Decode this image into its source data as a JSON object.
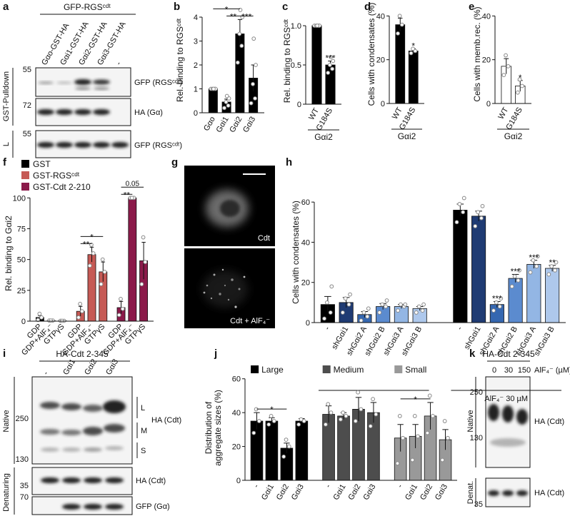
{
  "figure": {
    "panel_a": {
      "label": "a",
      "header": "GFP-RGSᶜᵈᵗ",
      "lanes": [
        "Gαo-GST-HA",
        "Gαi1-GST-HA",
        "Gαi2-GST-HA",
        "Gαi3-GST-HA",
        "-"
      ],
      "side_labels": [
        "GST-Pulldown",
        "L"
      ],
      "markers": [
        55,
        72,
        55
      ],
      "bands": [
        "GFP (RGSᶜᵈᵗ)",
        "HA (Gα)",
        "GFP (RGSᶜᵈᵗ)"
      ]
    },
    "panel_g": {
      "label": "g",
      "captions": [
        "Cdt",
        "Cdt + AlF₄⁻"
      ]
    },
    "panel_i": {
      "label": "i",
      "header": "HA-Cdt 2-345",
      "lanes": [
        "-",
        "Gαi1",
        "Gαi2",
        "Gαi3"
      ],
      "side_labels": [
        "Native",
        "Denaturing"
      ],
      "markers": [
        250,
        130,
        35,
        70
      ],
      "sizes": [
        "L",
        "M",
        "S"
      ],
      "bands": [
        "HA (Cdt)",
        "HA (Cdt)",
        "GFP (Gα)"
      ]
    },
    "panel_k": {
      "label": "k",
      "header": "HA-Cdt 2-345",
      "lanes": [
        0,
        30,
        150
      ],
      "unit": "AlF₄⁻ (µM)",
      "side_labels": [
        "Native",
        "Denat."
      ],
      "markers": [
        250,
        130,
        35
      ],
      "bands": [
        "HA (Cdt)",
        "HA (Cdt)"
      ]
    }
  },
  "chart_data": [
    {
      "panel": "b",
      "type": "bar",
      "ylabel": "Rel. binding to RGSᶜᵈᵗ",
      "categories": [
        "Gαo",
        "Gαi1",
        "Gαi2",
        "Gαi3"
      ],
      "values": [
        1.0,
        0.45,
        3.3,
        1.45
      ],
      "errors": [
        0.03,
        0.12,
        0.6,
        0.55
      ],
      "points": [
        [
          1,
          1,
          1,
          1,
          1
        ],
        [
          0.2,
          0.3,
          0.45,
          0.6,
          0.7
        ],
        [
          2.1,
          2.8,
          3.3,
          4.0,
          4.3
        ],
        [
          0.4,
          0.6,
          1.2,
          2.0,
          3.1
        ]
      ],
      "color": "#000000",
      "ylim": [
        0,
        4.4
      ],
      "yticks": [
        0,
        1,
        2,
        3,
        4
      ],
      "significance": [
        {
          "label": "*",
          "from": 0,
          "to": 2
        },
        {
          "label": "**",
          "from": 1,
          "to": 2
        },
        {
          "label": "***",
          "from": 2,
          "to": 3
        }
      ]
    },
    {
      "panel": "c",
      "type": "bar",
      "ylabel": "Rel. binding to RGSᶜᵈᵗ",
      "categories": [
        "WT",
        "G184S"
      ],
      "group_label": "Gαi2",
      "values": [
        1.0,
        0.5
      ],
      "errors": [
        0.005,
        0.05
      ],
      "points": [
        [
          1,
          1,
          1,
          1,
          1
        ],
        [
          0.4,
          0.45,
          0.5,
          0.55,
          0.6
        ]
      ],
      "color": "#000000",
      "ylim": [
        0,
        1.1
      ],
      "yticks": [
        0,
        0.5,
        {
          "value": 1,
          "label": "1.0"
        }
      ],
      "significance": [
        {
          "label": "***",
          "at": 1
        }
      ]
    },
    {
      "panel": "d",
      "type": "bar",
      "ylabel": "Cells with condensates (%)",
      "categories": [
        "WT",
        "G184S"
      ],
      "group_label": "Gαi2",
      "values": [
        36,
        24
      ],
      "errors": [
        3,
        1
      ],
      "points": [
        [
          32,
          36,
          40
        ],
        [
          23,
          24,
          25
        ]
      ],
      "color": "#000000",
      "ylim": [
        0,
        45
      ],
      "yticks": [
        0,
        20,
        40
      ],
      "significance": [
        {
          "label": "*",
          "at": 1
        }
      ]
    },
    {
      "panel": "e",
      "type": "bar",
      "ylabel": "Cells with memb.rec. (%)",
      "categories": [
        "WT",
        "G184S"
      ],
      "group_label": "Gαi2",
      "values": [
        17,
        8
      ],
      "errors": [
        3.5,
        2.5
      ],
      "points": [
        [
          13,
          17,
          22
        ],
        [
          5,
          8,
          11
        ]
      ],
      "color": "#ffffff",
      "ylim": [
        0,
        45
      ],
      "yticks": [
        0,
        20,
        40
      ],
      "significance": [
        {
          "label": "*",
          "at": 1
        }
      ]
    },
    {
      "panel": "f",
      "type": "bar",
      "ylabel": "Rel. binding to Gαi2",
      "legend": "top-left",
      "categories": [
        "GDP",
        "GDP+AlF₄⁻",
        "GTPγS"
      ],
      "series": [
        {
          "name": "GST",
          "color": "#000000",
          "values": [
            3,
            0.5,
            0.3
          ],
          "errors": [
            1.5,
            0.2,
            0.1
          ],
          "points": [
            [
              1,
              3,
              6
            ],
            [
              0.5,
              0.5,
              0.5
            ],
            [
              0.3,
              0.3,
              0.3
            ]
          ]
        },
        {
          "name": "GST-RGSᶜᵈᵗ",
          "color": "#c65a55",
          "values": [
            8,
            54,
            40
          ],
          "errors": [
            4,
            6,
            8
          ],
          "points": [
            [
              3,
              8,
              14
            ],
            [
              45,
              55,
              62
            ],
            [
              30,
              40,
              50
            ]
          ]
        },
        {
          "name": "GST-Cdt 2-210",
          "color": "#8b1a4a",
          "values": [
            11,
            100,
            49
          ],
          "errors": [
            5,
            0,
            15
          ],
          "points": [
            [
              5,
              10,
              18
            ],
            [
              100,
              100,
              100
            ],
            [
              30,
              48,
              68
            ]
          ]
        }
      ],
      "ylim": [
        0,
        110
      ],
      "yticks": [
        0,
        25,
        50,
        75,
        100
      ],
      "significance": [
        {
          "label": "**",
          "series": 1,
          "from": 0,
          "to": 1
        },
        {
          "label": "*",
          "series": 1,
          "from": 0,
          "to": 2
        },
        {
          "label": "**",
          "series": 2,
          "from": 0,
          "to": 1
        },
        {
          "label": "0.05",
          "series": 2,
          "from": 0,
          "to": 2
        }
      ]
    },
    {
      "panel": "h",
      "type": "bar",
      "ylabel": "Cells with condensates (%)",
      "categories": [
        "-",
        "shGαi1",
        "shGαi2 A",
        "shGαi2 B",
        "shGαi3 A",
        "shGαi3 B"
      ],
      "category_colors": [
        "#000000",
        "#1f3b73",
        "#3567b0",
        "#5b8bcf",
        "#93b6e4",
        "#aec8ec"
      ],
      "series": [
        {
          "name": "-",
          "values": [
            9,
            10,
            4,
            8,
            8,
            7
          ],
          "errors": [
            4,
            2.5,
            1.5,
            1.5,
            1,
            1
          ],
          "points": [
            [
              2,
              5,
              10,
              18
            ],
            [
              5,
              9,
              12,
              14
            ],
            [
              1,
              3,
              5,
              7
            ],
            [
              5,
              8,
              9,
              11
            ],
            [
              6,
              8,
              9,
              9
            ],
            [
              5,
              6,
              8,
              9
            ]
          ]
        },
        {
          "name": "AlF₄⁻ 30 µM",
          "values": [
            56,
            53,
            9,
            22,
            29,
            27
          ],
          "errors": [
            3,
            2.5,
            1.5,
            2,
            2,
            1.5
          ],
          "points": [
            [
              50,
              55,
              59,
              62
            ],
            [
              48,
              52,
              55,
              58
            ],
            [
              6,
              8,
              10,
              12
            ],
            [
              18,
              21,
              23,
              26
            ],
            [
              25,
              28,
              31,
              33
            ],
            [
              24,
              26,
              28,
              30
            ]
          ]
        }
      ],
      "ylim": [
        0,
        70
      ],
      "yticks": [
        0,
        20,
        40,
        60
      ],
      "significance": [
        {
          "label": "***",
          "series": 1,
          "at": 2
        },
        {
          "label": "***",
          "series": 1,
          "at": 3
        },
        {
          "label": "***",
          "series": 1,
          "at": 4
        },
        {
          "label": "**",
          "series": 1,
          "at": 5
        }
      ]
    },
    {
      "panel": "j",
      "type": "bar",
      "ylabel": [
        "Distribution of",
        "aggregate sizes (%)"
      ],
      "legend": "top",
      "categories": [
        "-",
        "Gαi1",
        "Gαi2",
        "Gαi3"
      ],
      "series": [
        {
          "name": "Large",
          "color": "#000000",
          "values": [
            35,
            35,
            19,
            35
          ],
          "errors": [
            5,
            2,
            3,
            1.5
          ],
          "points": [
            [
              28,
              35,
              42
            ],
            [
              33,
              35,
              38
            ],
            [
              14,
              20,
              24
            ],
            [
              33,
              35,
              36
            ]
          ]
        },
        {
          "name": "Medium",
          "color": "#4d4d4d",
          "values": [
            39,
            38,
            42,
            40
          ],
          "errors": [
            5,
            2,
            7,
            6
          ],
          "points": [
            [
              33,
              40,
              45
            ],
            [
              36,
              38,
              40
            ],
            [
              35,
              42,
              52
            ],
            [
              32,
              39,
              48
            ]
          ]
        },
        {
          "name": "Small",
          "color": "#999999",
          "values": [
            25,
            26,
            38,
            24
          ],
          "errors": [
            8,
            7,
            8,
            6
          ],
          "points": [
            [
              10,
              25,
              38
            ],
            [
              12,
              26,
              38
            ],
            [
              28,
              38,
              50
            ],
            [
              12,
              25,
              35
            ]
          ]
        }
      ],
      "ylim": [
        0,
        62
      ],
      "yticks": [
        0,
        20,
        40,
        60
      ],
      "significance": [
        {
          "label": "*",
          "series": 0,
          "from": 0,
          "to": 2
        },
        {
          "label": "*",
          "series": 2,
          "from": 0,
          "to": 2
        }
      ]
    }
  ]
}
